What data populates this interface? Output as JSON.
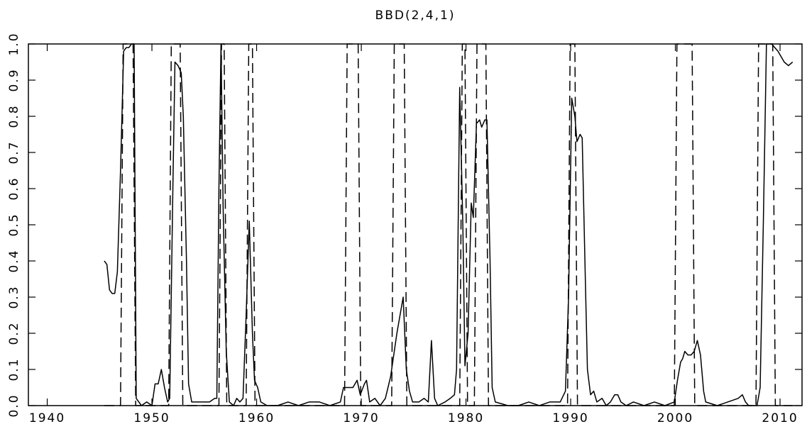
{
  "chart_data": {
    "type": "line",
    "title": "BBD(2,4,1)",
    "xlim": [
      1938.2,
      2012.1
    ],
    "xticks": [
      1940,
      1950,
      1960,
      1970,
      1980,
      1990,
      2000,
      2010
    ],
    "ylim": [
      0,
      1
    ],
    "yticks": [
      {
        "value": 0,
        "label": "0.0"
      },
      0.1,
      0.2,
      0.3,
      0.4,
      0.5,
      0.6,
      0.7,
      0.8,
      0.9,
      {
        "value": 1,
        "label": "1.0"
      }
    ],
    "grid": false,
    "series": [
      {
        "color": "#000000",
        "dash": "solid",
        "x": [
          1945.45,
          1945.7,
          1945.95,
          1946.2,
          1946.45,
          1946.7,
          1947.0,
          1947.3,
          1947.55,
          1947.8,
          1948.05,
          1948.3,
          1948.5,
          1949.0,
          1949.5,
          1950.0,
          1950.3,
          1950.6,
          1950.9,
          1951.2,
          1951.5,
          1951.7,
          1952.0,
          1952.2,
          1952.5,
          1952.8,
          1953.0,
          1953.3,
          1953.5,
          1953.8,
          1954.5,
          1955.0,
          1955.5,
          1956.0,
          1956.2,
          1956.4,
          1956.6,
          1956.8,
          1957.1,
          1957.4,
          1957.8,
          1958.1,
          1958.4,
          1958.7,
          1959.0,
          1959.3,
          1959.6,
          1959.8,
          1960.1,
          1960.4,
          1961,
          1962,
          1963,
          1964,
          1965,
          1966,
          1967,
          1968,
          1968.3,
          1968.8,
          1969.2,
          1969.6,
          1969.9,
          1970.3,
          1970.5,
          1970.8,
          1971.3,
          1971.8,
          1972.3,
          1972.8,
          1973.4,
          1974.0,
          1974.3,
          1974.6,
          1974.9,
          1975.5,
          1976.0,
          1976.4,
          1976.7,
          1977.0,
          1977.3,
          1978.0,
          1978.5,
          1978.9,
          1979.1,
          1979.4,
          1979.7,
          1979.9,
          1980.2,
          1980.5,
          1980.7,
          1981.0,
          1981.3,
          1981.5,
          1981.8,
          1982.0,
          1982.3,
          1982.5,
          1982.8,
          1984,
          1985,
          1986,
          1987,
          1988,
          1989,
          1989.5,
          1989.8,
          1990.1,
          1990.4,
          1990.6,
          1990.9,
          1991.1,
          1991.4,
          1991.6,
          1991.9,
          1992.2,
          1992.5,
          1993.0,
          1993.4,
          1993.8,
          1994.2,
          1994.5,
          1994.8,
          1995.3,
          1996,
          1997,
          1998,
          1999,
          1999.9,
          2000.2,
          2000.5,
          2000.7,
          2000.9,
          2001.2,
          2001.5,
          2001.8,
          2002.1,
          2002.4,
          2002.7,
          2002.9,
          2004,
          2005,
          2006,
          2006.4,
          2006.7,
          2007,
          2007.8,
          2008.1,
          2008.4,
          2008.7,
          2009.2,
          2009.8,
          2010.4,
          2010.8,
          2011.2
        ],
        "values": [
          0.4,
          0.39,
          0.32,
          0.31,
          0.31,
          0.37,
          0.65,
          0.98,
          0.99,
          0.99,
          1.0,
          1.0,
          0.02,
          0.0,
          0.01,
          0.0,
          0.06,
          0.06,
          0.1,
          0.05,
          0.01,
          0.02,
          0.6,
          0.95,
          0.94,
          0.92,
          0.8,
          0.4,
          0.06,
          0.01,
          0.01,
          0.01,
          0.01,
          0.02,
          0.02,
          0.6,
          1.0,
          0.55,
          0.15,
          0.01,
          0.0,
          0.02,
          0.01,
          0.02,
          0.25,
          0.51,
          0.2,
          0.07,
          0.05,
          0.01,
          0.0,
          0.0,
          0.01,
          0.0,
          0.01,
          0.01,
          0.0,
          0.01,
          0.05,
          0.05,
          0.05,
          0.07,
          0.03,
          0.06,
          0.07,
          0.01,
          0.02,
          0.0,
          0.02,
          0.08,
          0.2,
          0.3,
          0.1,
          0.04,
          0.01,
          0.01,
          0.02,
          0.01,
          0.18,
          0.02,
          0.0,
          0.01,
          0.02,
          0.03,
          0.1,
          0.88,
          0.5,
          0.11,
          0.2,
          0.56,
          0.52,
          0.78,
          0.79,
          0.77,
          0.79,
          0.79,
          0.4,
          0.05,
          0.01,
          0.0,
          0.0,
          0.01,
          0.0,
          0.01,
          0.01,
          0.04,
          0.3,
          0.85,
          0.8,
          0.73,
          0.75,
          0.74,
          0.35,
          0.1,
          0.03,
          0.04,
          0.01,
          0.02,
          0.0,
          0.01,
          0.03,
          0.03,
          0.01,
          0.0,
          0.01,
          0.0,
          0.01,
          0.0,
          0.01,
          0.07,
          0.12,
          0.13,
          0.15,
          0.14,
          0.14,
          0.15,
          0.18,
          0.14,
          0.04,
          0.01,
          0.0,
          0.01,
          0.02,
          0.03,
          0.01,
          0.0,
          0.0,
          0.05,
          0.5,
          1.0,
          1.0,
          0.98,
          0.95,
          0.94,
          0.95
        ]
      },
      {
        "color": "#000000",
        "dash": "dashed",
        "x": [
          1945.45,
          1947.0,
          1947.25,
          1948.2,
          1948.45,
          1951.6,
          1951.85,
          1952.7,
          1952.95,
          1956.4,
          1956.65,
          1956.9,
          1957.15,
          1959.0,
          1959.25,
          1959.6,
          1959.85,
          1968.4,
          1968.65,
          1969.7,
          1969.95,
          1972.9,
          1973.15,
          1974.1,
          1974.35,
          1979.4,
          1979.65,
          1979.9,
          1980.15,
          1980.8,
          1981.05,
          1981.9,
          1982.15,
          1989.7,
          1989.95,
          1990.4,
          1990.65,
          1999.9,
          2000.15,
          2001.6,
          2001.85,
          2007.7,
          2007.95,
          2009.3,
          2009.55,
          2011.2
        ],
        "values": [
          0,
          0,
          1,
          1,
          0,
          0,
          1,
          1,
          0,
          0,
          1,
          1,
          0,
          0,
          1,
          1,
          0,
          0,
          1,
          1,
          0,
          0,
          1,
          1,
          0,
          0,
          1,
          1,
          0,
          0,
          1,
          1,
          0,
          0,
          1,
          1,
          0,
          0,
          1,
          1,
          0,
          0,
          1,
          1,
          0,
          0
        ]
      }
    ]
  }
}
